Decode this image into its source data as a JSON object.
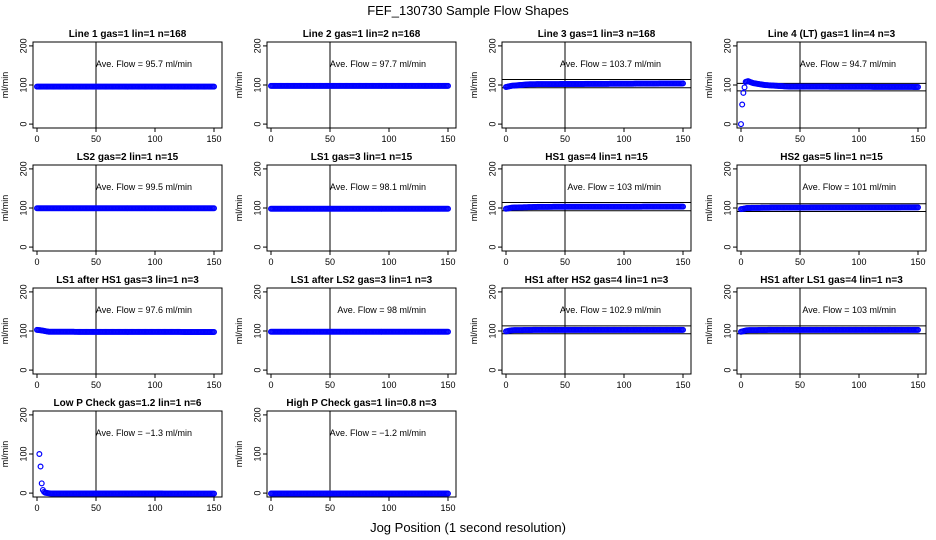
{
  "figure": {
    "title": "FEF_130730  Sample Flow Shapes",
    "xlabel": "Jog Position (1 second resolution)",
    "point_color": "#0000ff",
    "ave_prefix": "Ave. Flow = ",
    "ave_unit": "ml/min"
  },
  "chart_data": [
    {
      "type": "scatter",
      "title": "Line 1 gas=1 lin=1 n=168",
      "ylabel": "ml/min",
      "ave_flow": "95.7",
      "xlim": [
        0,
        150
      ],
      "ylim": [
        -10,
        210
      ],
      "xticks": [
        0,
        50,
        100,
        150
      ],
      "yticks": [
        0,
        100,
        200
      ],
      "vline": 50,
      "hlines": [],
      "series": [
        {
          "x": [
            0,
            150
          ],
          "y": [
            95.7,
            95.7
          ],
          "kind": "dense"
        }
      ]
    },
    {
      "type": "scatter",
      "title": "Line 2 gas=1 lin=2 n=168",
      "ylabel": "ml/min",
      "ave_flow": "97.7",
      "xlim": [
        0,
        150
      ],
      "ylim": [
        -10,
        210
      ],
      "xticks": [
        0,
        50,
        100,
        150
      ],
      "yticks": [
        0,
        100,
        200
      ],
      "vline": 50,
      "hlines": [],
      "series": [
        {
          "x": [
            0,
            150
          ],
          "y": [
            97.7,
            97.7
          ],
          "kind": "dense"
        }
      ]
    },
    {
      "type": "scatter",
      "title": "Line 3 gas=1 lin=3 n=168",
      "ylabel": "ml/min",
      "ave_flow": "103.7",
      "xlim": [
        0,
        150
      ],
      "ylim": [
        -10,
        210
      ],
      "xticks": [
        0,
        50,
        100,
        150
      ],
      "yticks": [
        0,
        100,
        200
      ],
      "vline": 50,
      "hlines": [
        114,
        93
      ],
      "series": [
        {
          "x": [
            0,
            5,
            20,
            150
          ],
          "y": [
            95,
            98,
            102,
            104
          ],
          "kind": "dense"
        }
      ]
    },
    {
      "type": "scatter",
      "title": "Line 4 (LT) gas=1 lin=4 n=3",
      "ylabel": "ml/min",
      "ave_flow": "94.7",
      "xlim": [
        0,
        150
      ],
      "ylim": [
        -10,
        210
      ],
      "xticks": [
        0,
        50,
        100,
        150
      ],
      "yticks": [
        0,
        100,
        200
      ],
      "vline": 50,
      "hlines": [
        104,
        85
      ],
      "series": [
        {
          "x": [
            0,
            1,
            2,
            4,
            6,
            10,
            20,
            40,
            150
          ],
          "y": [
            0,
            50,
            80,
            108,
            110,
            105,
            100,
            96,
            95
          ],
          "kind": "dense"
        }
      ]
    },
    {
      "type": "scatter",
      "title": "LS2 gas=2 lin=1 n=15",
      "ylabel": "ml/min",
      "ave_flow": "99.5",
      "xlim": [
        0,
        150
      ],
      "ylim": [
        -10,
        210
      ],
      "xticks": [
        0,
        50,
        100,
        150
      ],
      "yticks": [
        0,
        100,
        200
      ],
      "vline": 50,
      "hlines": [],
      "series": [
        {
          "x": [
            0,
            150
          ],
          "y": [
            99.5,
            99.5
          ],
          "kind": "dense"
        }
      ]
    },
    {
      "type": "scatter",
      "title": "LS1 gas=3 lin=1 n=15",
      "ylabel": "ml/min",
      "ave_flow": "98.1",
      "xlim": [
        0,
        150
      ],
      "ylim": [
        -10,
        210
      ],
      "xticks": [
        0,
        50,
        100,
        150
      ],
      "yticks": [
        0,
        100,
        200
      ],
      "vline": 50,
      "hlines": [],
      "series": [
        {
          "x": [
            0,
            150
          ],
          "y": [
            98.1,
            98.1
          ],
          "kind": "dense"
        }
      ]
    },
    {
      "type": "scatter",
      "title": "HS1 gas=4 lin=1 n=15",
      "ylabel": "ml/min",
      "ave_flow": "103",
      "xlim": [
        0,
        150
      ],
      "ylim": [
        -10,
        210
      ],
      "xticks": [
        0,
        50,
        100,
        150
      ],
      "yticks": [
        0,
        100,
        200
      ],
      "vline": 50,
      "hlines": [
        114,
        93
      ],
      "series": [
        {
          "x": [
            0,
            5,
            30,
            150
          ],
          "y": [
            98,
            101,
            103,
            103.5
          ],
          "kind": "dense"
        }
      ]
    },
    {
      "type": "scatter",
      "title": "HS2 gas=5 lin=1 n=15",
      "ylabel": "ml/min",
      "ave_flow": "101",
      "xlim": [
        0,
        150
      ],
      "ylim": [
        -10,
        210
      ],
      "xticks": [
        0,
        50,
        100,
        150
      ],
      "yticks": [
        0,
        100,
        200
      ],
      "vline": 50,
      "hlines": [
        111,
        91
      ],
      "series": [
        {
          "x": [
            0,
            5,
            30,
            150
          ],
          "y": [
            97,
            100,
            101,
            101.5
          ],
          "kind": "dense"
        }
      ]
    },
    {
      "type": "scatter",
      "title": "LS1 after HS1 gas=3 lin=1 n=3",
      "ylabel": "ml/min",
      "ave_flow": "97.6",
      "xlim": [
        0,
        150
      ],
      "ylim": [
        -10,
        210
      ],
      "xticks": [
        0,
        50,
        100,
        150
      ],
      "yticks": [
        0,
        100,
        200
      ],
      "vline": 50,
      "hlines": [],
      "series": [
        {
          "x": [
            0,
            5,
            10,
            150
          ],
          "y": [
            103,
            101,
            98,
            97.5
          ],
          "kind": "dense"
        }
      ]
    },
    {
      "type": "scatter",
      "title": "LS1 after LS2 gas=3 lin=1 n=3",
      "ylabel": "ml/min",
      "ave_flow": "98",
      "xlim": [
        0,
        150
      ],
      "ylim": [
        -10,
        210
      ],
      "xticks": [
        0,
        50,
        100,
        150
      ],
      "yticks": [
        0,
        100,
        200
      ],
      "vline": 50,
      "hlines": [],
      "series": [
        {
          "x": [
            0,
            150
          ],
          "y": [
            98,
            98
          ],
          "kind": "dense"
        }
      ]
    },
    {
      "type": "scatter",
      "title": "HS1 after HS2 gas=4 lin=1 n=3",
      "ylabel": "ml/min",
      "ave_flow": "102.9",
      "xlim": [
        0,
        150
      ],
      "ylim": [
        -10,
        210
      ],
      "xticks": [
        0,
        50,
        100,
        150
      ],
      "yticks": [
        0,
        100,
        200
      ],
      "vline": 50,
      "hlines": [
        113,
        93
      ],
      "series": [
        {
          "x": [
            0,
            5,
            30,
            150
          ],
          "y": [
            99,
            102,
            103,
            103
          ],
          "kind": "dense"
        }
      ]
    },
    {
      "type": "scatter",
      "title": "HS1 after LS1 gas=4 lin=1 n=3",
      "ylabel": "ml/min",
      "ave_flow": "103",
      "xlim": [
        0,
        150
      ],
      "ylim": [
        -10,
        210
      ],
      "xticks": [
        0,
        50,
        100,
        150
      ],
      "yticks": [
        0,
        100,
        200
      ],
      "vline": 50,
      "hlines": [
        113,
        93
      ],
      "series": [
        {
          "x": [
            0,
            5,
            30,
            150
          ],
          "y": [
            98,
            102,
            103,
            103
          ],
          "kind": "dense"
        }
      ]
    },
    {
      "type": "scatter",
      "title": "Low P Check gas=1.2 lin=1 n=6",
      "ylabel": "ml/min",
      "ave_flow": "−1.3",
      "xlim": [
        0,
        150
      ],
      "ylim": [
        -10,
        210
      ],
      "xticks": [
        0,
        50,
        100,
        150
      ],
      "yticks": [
        0,
        100,
        200
      ],
      "vline": 50,
      "hlines": [],
      "series": [
        {
          "x": [
            2,
            3,
            4,
            5,
            6,
            7,
            9,
            12,
            150
          ],
          "y": [
            100,
            68,
            25,
            8,
            3,
            1,
            0,
            -1,
            -1.3
          ],
          "kind": "dense"
        }
      ]
    },
    {
      "type": "scatter",
      "title": "High P Check gas=1 lin=0.8 n=3",
      "ylabel": "ml/min",
      "ave_flow": "−1.2",
      "xlim": [
        0,
        150
      ],
      "ylim": [
        -10,
        210
      ],
      "xticks": [
        0,
        50,
        100,
        150
      ],
      "yticks": [
        0,
        100,
        200
      ],
      "vline": 50,
      "hlines": [],
      "series": [
        {
          "x": [
            0,
            150
          ],
          "y": [
            -1.2,
            -1.2
          ],
          "kind": "dense"
        }
      ]
    }
  ]
}
